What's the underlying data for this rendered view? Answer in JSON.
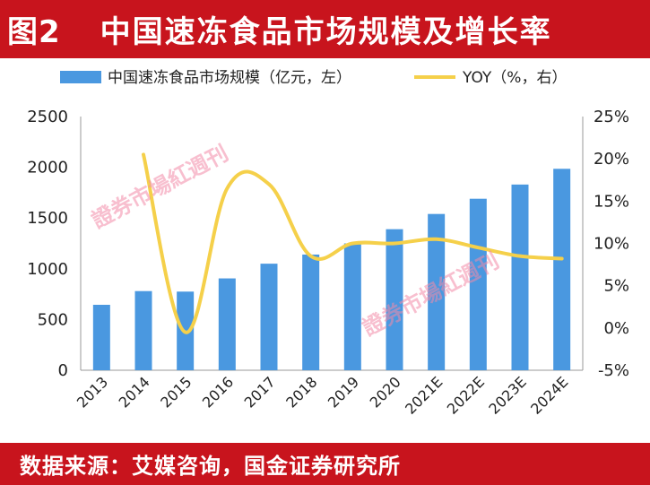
{
  "header": {
    "figure_label": "图2",
    "title": "中国速冻食品市场规模及增长率"
  },
  "footer": {
    "source": "数据来源：艾媒咨询，国金证券研究所"
  },
  "watermark": {
    "text": "證券市場紅週刊"
  },
  "chart_data": {
    "type": "bar",
    "categories": [
      "2013",
      "2014",
      "2015",
      "2016",
      "2017",
      "2018",
      "2019",
      "2020",
      "2021E",
      "2022E",
      "2023E",
      "2024E"
    ],
    "series": [
      {
        "name": "中国速冻食品市场规模（亿元，左）",
        "type": "bar",
        "axis": "left",
        "color": "#4a98e0",
        "values": [
          645,
          780,
          775,
          905,
          1050,
          1140,
          1250,
          1390,
          1540,
          1690,
          1830,
          1985
        ]
      },
      {
        "name": "YOY（%，右）",
        "type": "line",
        "axis": "right",
        "color": "#f5d04a",
        "values": [
          null,
          20.5,
          -0.5,
          16.5,
          17.0,
          8.5,
          10.0,
          10.0,
          10.5,
          9.5,
          8.5,
          8.2
        ]
      }
    ],
    "y_left": {
      "min": 0,
      "max": 2500,
      "ticks": [
        "0",
        "500",
        "1000",
        "1500",
        "2000",
        "2500"
      ]
    },
    "y_right": {
      "min": -5,
      "max": 25,
      "ticks": [
        "-5%",
        "0%",
        "5%",
        "10%",
        "15%",
        "20%",
        "25%"
      ]
    },
    "legend_position": "top",
    "grid": false
  }
}
